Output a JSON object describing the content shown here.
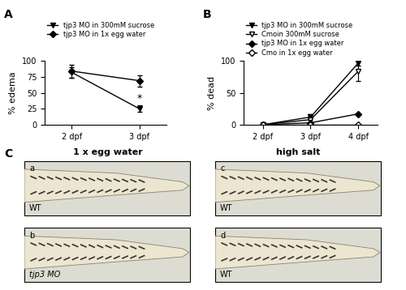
{
  "panel_labels": [
    "A",
    "B",
    "C"
  ],
  "chart_data": [
    {
      "type": "line",
      "ylabel": "% edema",
      "categories": [
        "2 dpf",
        "3 dpf"
      ],
      "series": [
        {
          "name": "tjp3 MO in 300mM sucrose",
          "color": "#000000",
          "marker": "triangle_down",
          "values": [
            82,
            25
          ],
          "errors": [
            8,
            5
          ]
        },
        {
          "name": "tjp3 MO in 1x egg water",
          "color": "#000000",
          "marker": "diamond",
          "values": [
            84,
            69
          ],
          "errors": [
            10,
            9
          ]
        }
      ],
      "annotations": [
        {
          "text": "*",
          "x": "3 dpf",
          "y": 33
        }
      ],
      "ylim": [
        0,
        100
      ],
      "yticks": [
        0,
        25,
        50,
        75,
        100
      ],
      "legend": "upper left"
    },
    {
      "type": "line",
      "ylabel": "% dead",
      "categories": [
        "2 dpf",
        "3 dpf",
        "4 dpf"
      ],
      "series": [
        {
          "name": "tjp3 MO in 300mM sucrose",
          "color": "#000000",
          "marker": "triangle_down",
          "values": [
            0,
            12,
            97
          ],
          "errors": [
            0,
            5,
            4
          ]
        },
        {
          "name": "Cmoin 300mM sucrose",
          "color": "#000000",
          "marker": "open_triangle_down",
          "values": [
            0,
            8,
            84
          ],
          "errors": [
            0,
            4,
            16
          ]
        },
        {
          "name": "tjp3 MO in 1x egg water",
          "color": "#000000",
          "marker": "diamond",
          "values": [
            0,
            3,
            17
          ],
          "errors": [
            0,
            0,
            0
          ]
        },
        {
          "name": "Cmo in 1x egg water",
          "color": "#000000",
          "marker": "open_diamond",
          "values": [
            0,
            0,
            0
          ],
          "errors": [
            0,
            0,
            0
          ]
        }
      ],
      "ylim": [
        0,
        100
      ],
      "yticks": [
        0,
        50,
        100
      ],
      "legend": "upper left"
    }
  ],
  "panel_c": {
    "columns": [
      "1 x egg water",
      "high salt"
    ],
    "images": [
      {
        "letter": "a",
        "label": "WT"
      },
      {
        "letter": "b",
        "label": "tjp3 MO"
      },
      {
        "letter": "c",
        "label": "WT"
      },
      {
        "letter": "d",
        "label": "WT"
      }
    ]
  }
}
